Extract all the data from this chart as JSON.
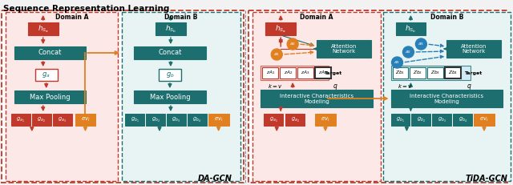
{
  "title": "Sequence Representation Learning",
  "label_dagcn": "DA-GCN",
  "label_tidagcn": "TiDA-GCN",
  "colors": {
    "teal": "#1d6e6e",
    "teal_bg": "#e8f4f4",
    "red": "#c0392b",
    "red_bg": "#fce8e6",
    "orange": "#e08020",
    "blue": "#2980b9",
    "blue_bg": "#e3f0f8",
    "white": "#ffffff",
    "black": "#1a1a1a",
    "light_red_bg": "#f9d5ce",
    "light_blue_bg": "#cce8f4"
  },
  "bg": "#f8f8f8"
}
